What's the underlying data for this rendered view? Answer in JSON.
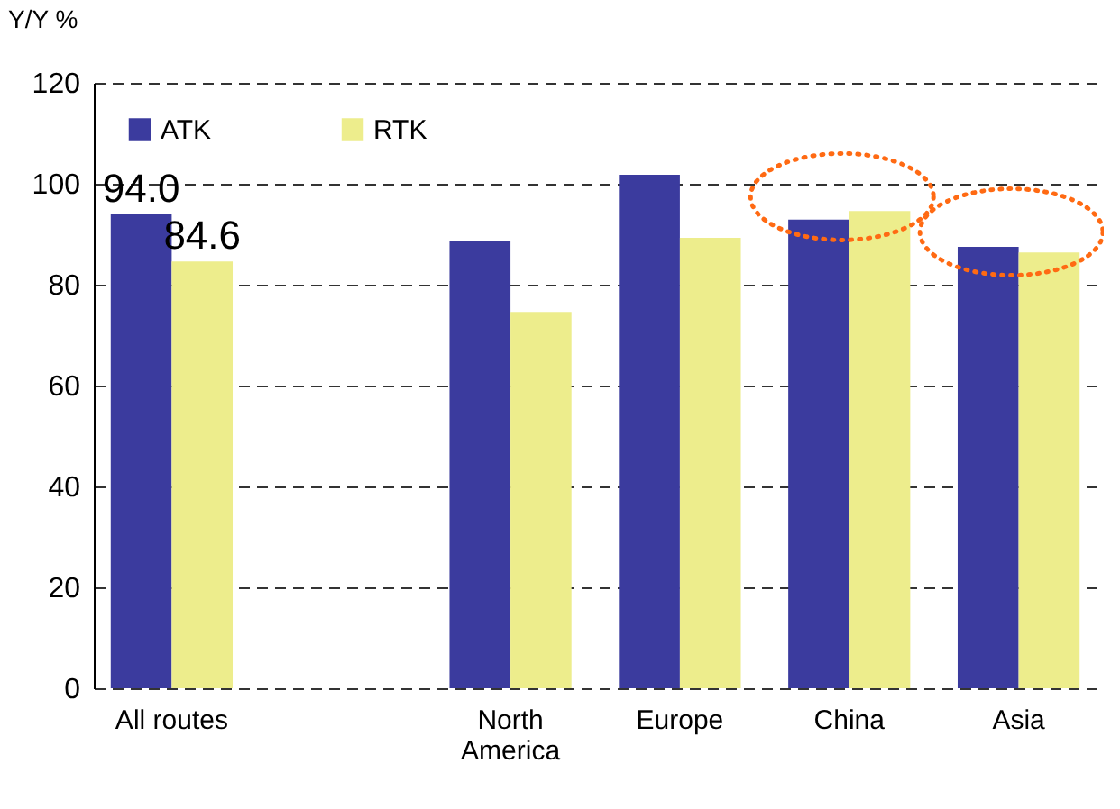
{
  "chart_data": {
    "type": "bar",
    "ylabel": "Y/Y %",
    "categories": [
      "All routes",
      null,
      "North America",
      "Europe",
      "China",
      "Asia"
    ],
    "series": [
      {
        "name": "ATK",
        "color": "#3b3b9e",
        "values": [
          94.0,
          null,
          88.6,
          101.8,
          92.9,
          87.5
        ],
        "value_labels": [
          "94.0",
          null,
          null,
          null,
          null,
          null
        ]
      },
      {
        "name": "RTK",
        "color": "#eded8c",
        "values": [
          84.6,
          null,
          74.6,
          89.3,
          94.6,
          86.4
        ],
        "value_labels": [
          "84.6",
          null,
          null,
          null,
          null,
          null
        ]
      }
    ],
    "ylim": [
      0,
      120
    ],
    "yticks": [
      0,
      20,
      40,
      60,
      80,
      100,
      120
    ],
    "grid": "y",
    "legend": "top left"
  }
}
